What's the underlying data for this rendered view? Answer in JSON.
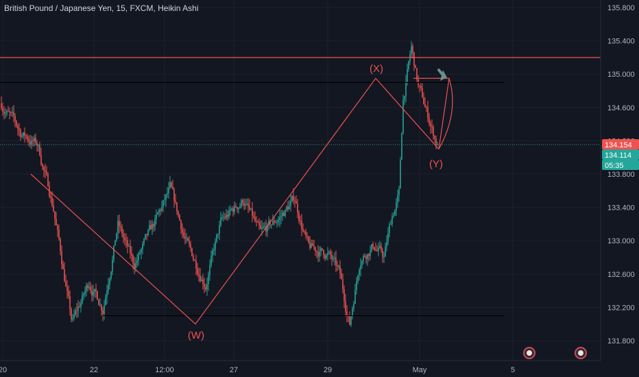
{
  "header": {
    "title": "British Pound / Japanese Yen, 15, FXCM, Heikin Ashi"
  },
  "colors": {
    "background": "#131722",
    "up": "#26a69a",
    "down": "#ef5350",
    "annotation": "#ef5350",
    "current_price_tag": "#ef5350",
    "prev_close_tag": "#26a69a"
  },
  "price_tags": {
    "current": "134.154",
    "previous": "134.114",
    "countdown": "05:35"
  },
  "chart_data": {
    "type": "candlestick",
    "style": "Heikin Ashi",
    "symbol": "GBPJPY",
    "interval": "15",
    "source": "FXCM",
    "ylim": [
      131.7,
      135.8
    ],
    "y_ticks": [
      "135.800",
      "135.400",
      "135.000",
      "134.600",
      "134.200",
      "133.800",
      "133.400",
      "133.000",
      "132.600",
      "132.200",
      "131.800"
    ],
    "x_ticks": [
      "20",
      "22",
      "12:00",
      "27",
      "29",
      "May",
      "5"
    ],
    "approx_path": [
      {
        "x": "20",
        "price": 134.65
      },
      {
        "x": "20.5",
        "price": 134.3
      },
      {
        "x": "21",
        "price": 134.15
      },
      {
        "x": "21.3",
        "price": 133.4
      },
      {
        "x": "21.7",
        "price": 132.0
      },
      {
        "x": "22",
        "price": 132.5
      },
      {
        "x": "22.2",
        "price": 132.2
      },
      {
        "x": "22.6",
        "price": 133.2
      },
      {
        "x": "23",
        "price": 132.7
      },
      {
        "x": "12:00",
        "price": 133.1
      },
      {
        "x": "12:00+",
        "price": 133.6
      },
      {
        "x": "26",
        "price": 132.9
      },
      {
        "x": "26.5",
        "price": 132.5
      },
      {
        "x": "27",
        "price": 133.2
      },
      {
        "x": "27.3",
        "price": 133.5
      },
      {
        "x": "27.8",
        "price": 133.05
      },
      {
        "x": "28.3",
        "price": 133.3
      },
      {
        "x": "28.6",
        "price": 133.5
      },
      {
        "x": "28.8",
        "price": 132.9
      },
      {
        "x": "29",
        "price": 132.85
      },
      {
        "x": "29.3",
        "price": 132.6
      },
      {
        "x": "29.6",
        "price": 132.0
      },
      {
        "x": "29.8",
        "price": 132.8
      },
      {
        "x": "30",
        "price": 132.95
      },
      {
        "x": "30.4",
        "price": 132.8
      },
      {
        "x": "30.6",
        "price": 133.3
      },
      {
        "x": "30.8",
        "price": 133.55
      },
      {
        "x": "30.9",
        "price": 134.7
      },
      {
        "x": "May-",
        "price": 135.3
      },
      {
        "x": "May-.2",
        "price": 134.85
      },
      {
        "x": "May",
        "price": 134.6
      },
      {
        "x": "May+",
        "price": 134.15
      }
    ],
    "horizontal_lines": [
      {
        "price": 135.2,
        "color": "#ef5350"
      },
      {
        "price": 134.9,
        "color": "#000000"
      },
      {
        "price": 132.1,
        "color": "#000000"
      },
      {
        "price": 134.154,
        "color": "#26a69a",
        "style": "dotted"
      }
    ],
    "annotations": [
      {
        "text": "(X)",
        "price": 135.05
      },
      {
        "text": "(W)",
        "price": 131.9
      },
      {
        "text": "(Y)",
        "price": 133.95
      }
    ]
  }
}
